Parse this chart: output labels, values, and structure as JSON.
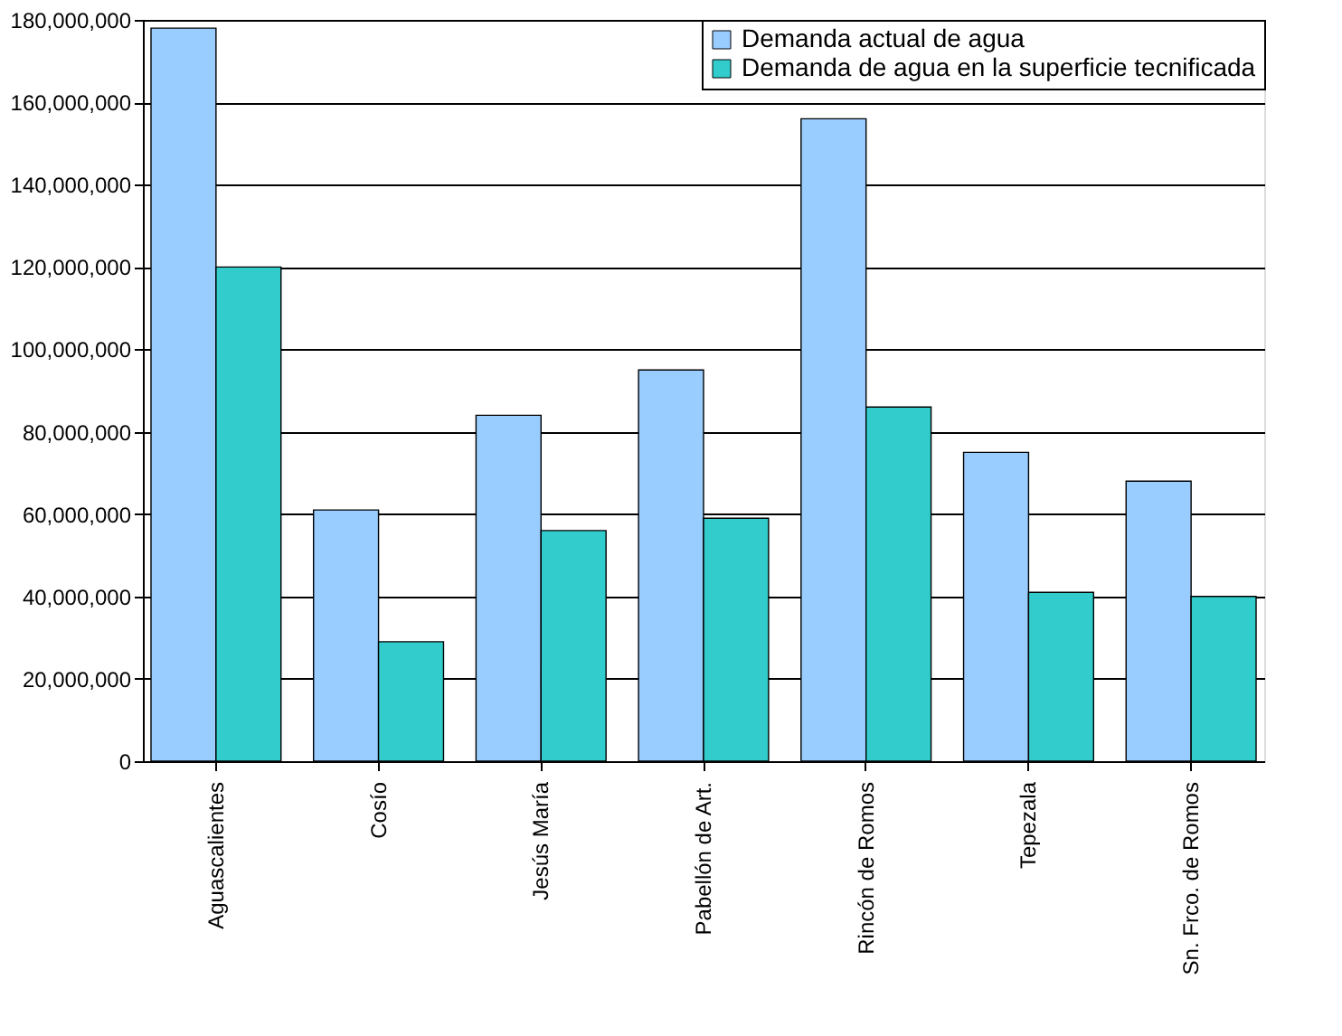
{
  "chart_data": {
    "type": "bar",
    "categories": [
      "Aguascalientes",
      "Cosío",
      "Jesús María",
      "Pabellón de Art.",
      "Rincón de Romos",
      "Tepezala",
      "Sn. Frco. de Romos"
    ],
    "series": [
      {
        "name": "Demanda actual de agua",
        "color": "#99ccff",
        "values": [
          178000000,
          61000000,
          84000000,
          95000000,
          156000000,
          75000000,
          68000000
        ]
      },
      {
        "name": "Demanda de agua en la superficie tecnificada",
        "color": "#33cccc",
        "values": [
          120000000,
          29000000,
          56000000,
          59000000,
          86000000,
          41000000,
          40000000
        ]
      }
    ],
    "ylim": [
      0,
      180000000
    ],
    "yticks": [
      {
        "value": 0,
        "label": "0"
      },
      {
        "value": 20000000,
        "label": "20,000,000"
      },
      {
        "value": 40000000,
        "label": "40,000,000"
      },
      {
        "value": 60000000,
        "label": "60,000,000"
      },
      {
        "value": 80000000,
        "label": "80,000,000"
      },
      {
        "value": 100000000,
        "label": "100,000,000"
      },
      {
        "value": 120000000,
        "label": "120,000,000"
      },
      {
        "value": 140000000,
        "label": "140,000,000"
      },
      {
        "value": 160000000,
        "label": "160,000,000"
      },
      {
        "value": 180000000,
        "label": "180,000,000"
      }
    ],
    "grid": "y",
    "legend": "top right"
  }
}
